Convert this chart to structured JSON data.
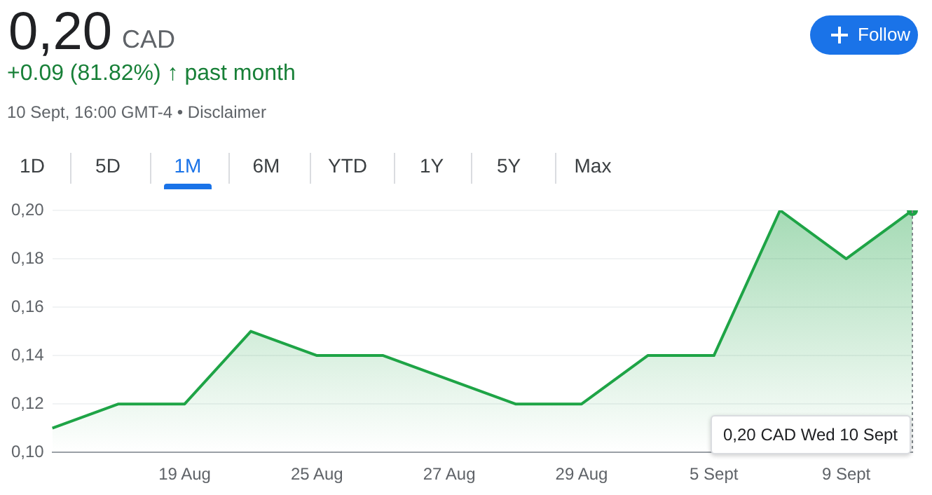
{
  "chart_data": {
    "type": "area",
    "title": "0,20",
    "subtitle": "CAD",
    "categories": [
      null,
      null,
      "19 Aug",
      null,
      "25 Aug",
      null,
      "27 Aug",
      null,
      "29 Aug",
      null,
      "5 Sept",
      null,
      "9 Sept",
      null
    ],
    "series": [
      {
        "color": "#1ea446",
        "values": [
          0.11,
          0.12,
          0.12,
          0.15,
          0.14,
          0.14,
          0.13,
          0.12,
          0.12,
          0.14,
          0.14,
          0.2,
          0.18,
          0.2
        ]
      }
    ],
    "ylim": [
      0.1,
      0.2
    ],
    "yticks": [
      {
        "value": 0.1,
        "label": "0,10"
      },
      {
        "value": 0.12,
        "label": "0,12"
      },
      {
        "value": 0.14,
        "label": "0,14"
      },
      {
        "value": 0.16,
        "label": "0,16"
      },
      {
        "value": 0.18,
        "label": "0,18"
      },
      {
        "value": 0.2,
        "label": "0,20"
      }
    ],
    "grid": "y",
    "legend": false,
    "annotations": [
      "+0.09 (81.82%) ↑ past month",
      "10 Sept, 16:00 GMT-4 • Disclaimer",
      "0,20 CAD  Wed 10 Sept",
      "Follow",
      "1D",
      "5D",
      "1M",
      "6M",
      "YTD",
      "1Y",
      "5Y",
      "Max"
    ]
  }
}
